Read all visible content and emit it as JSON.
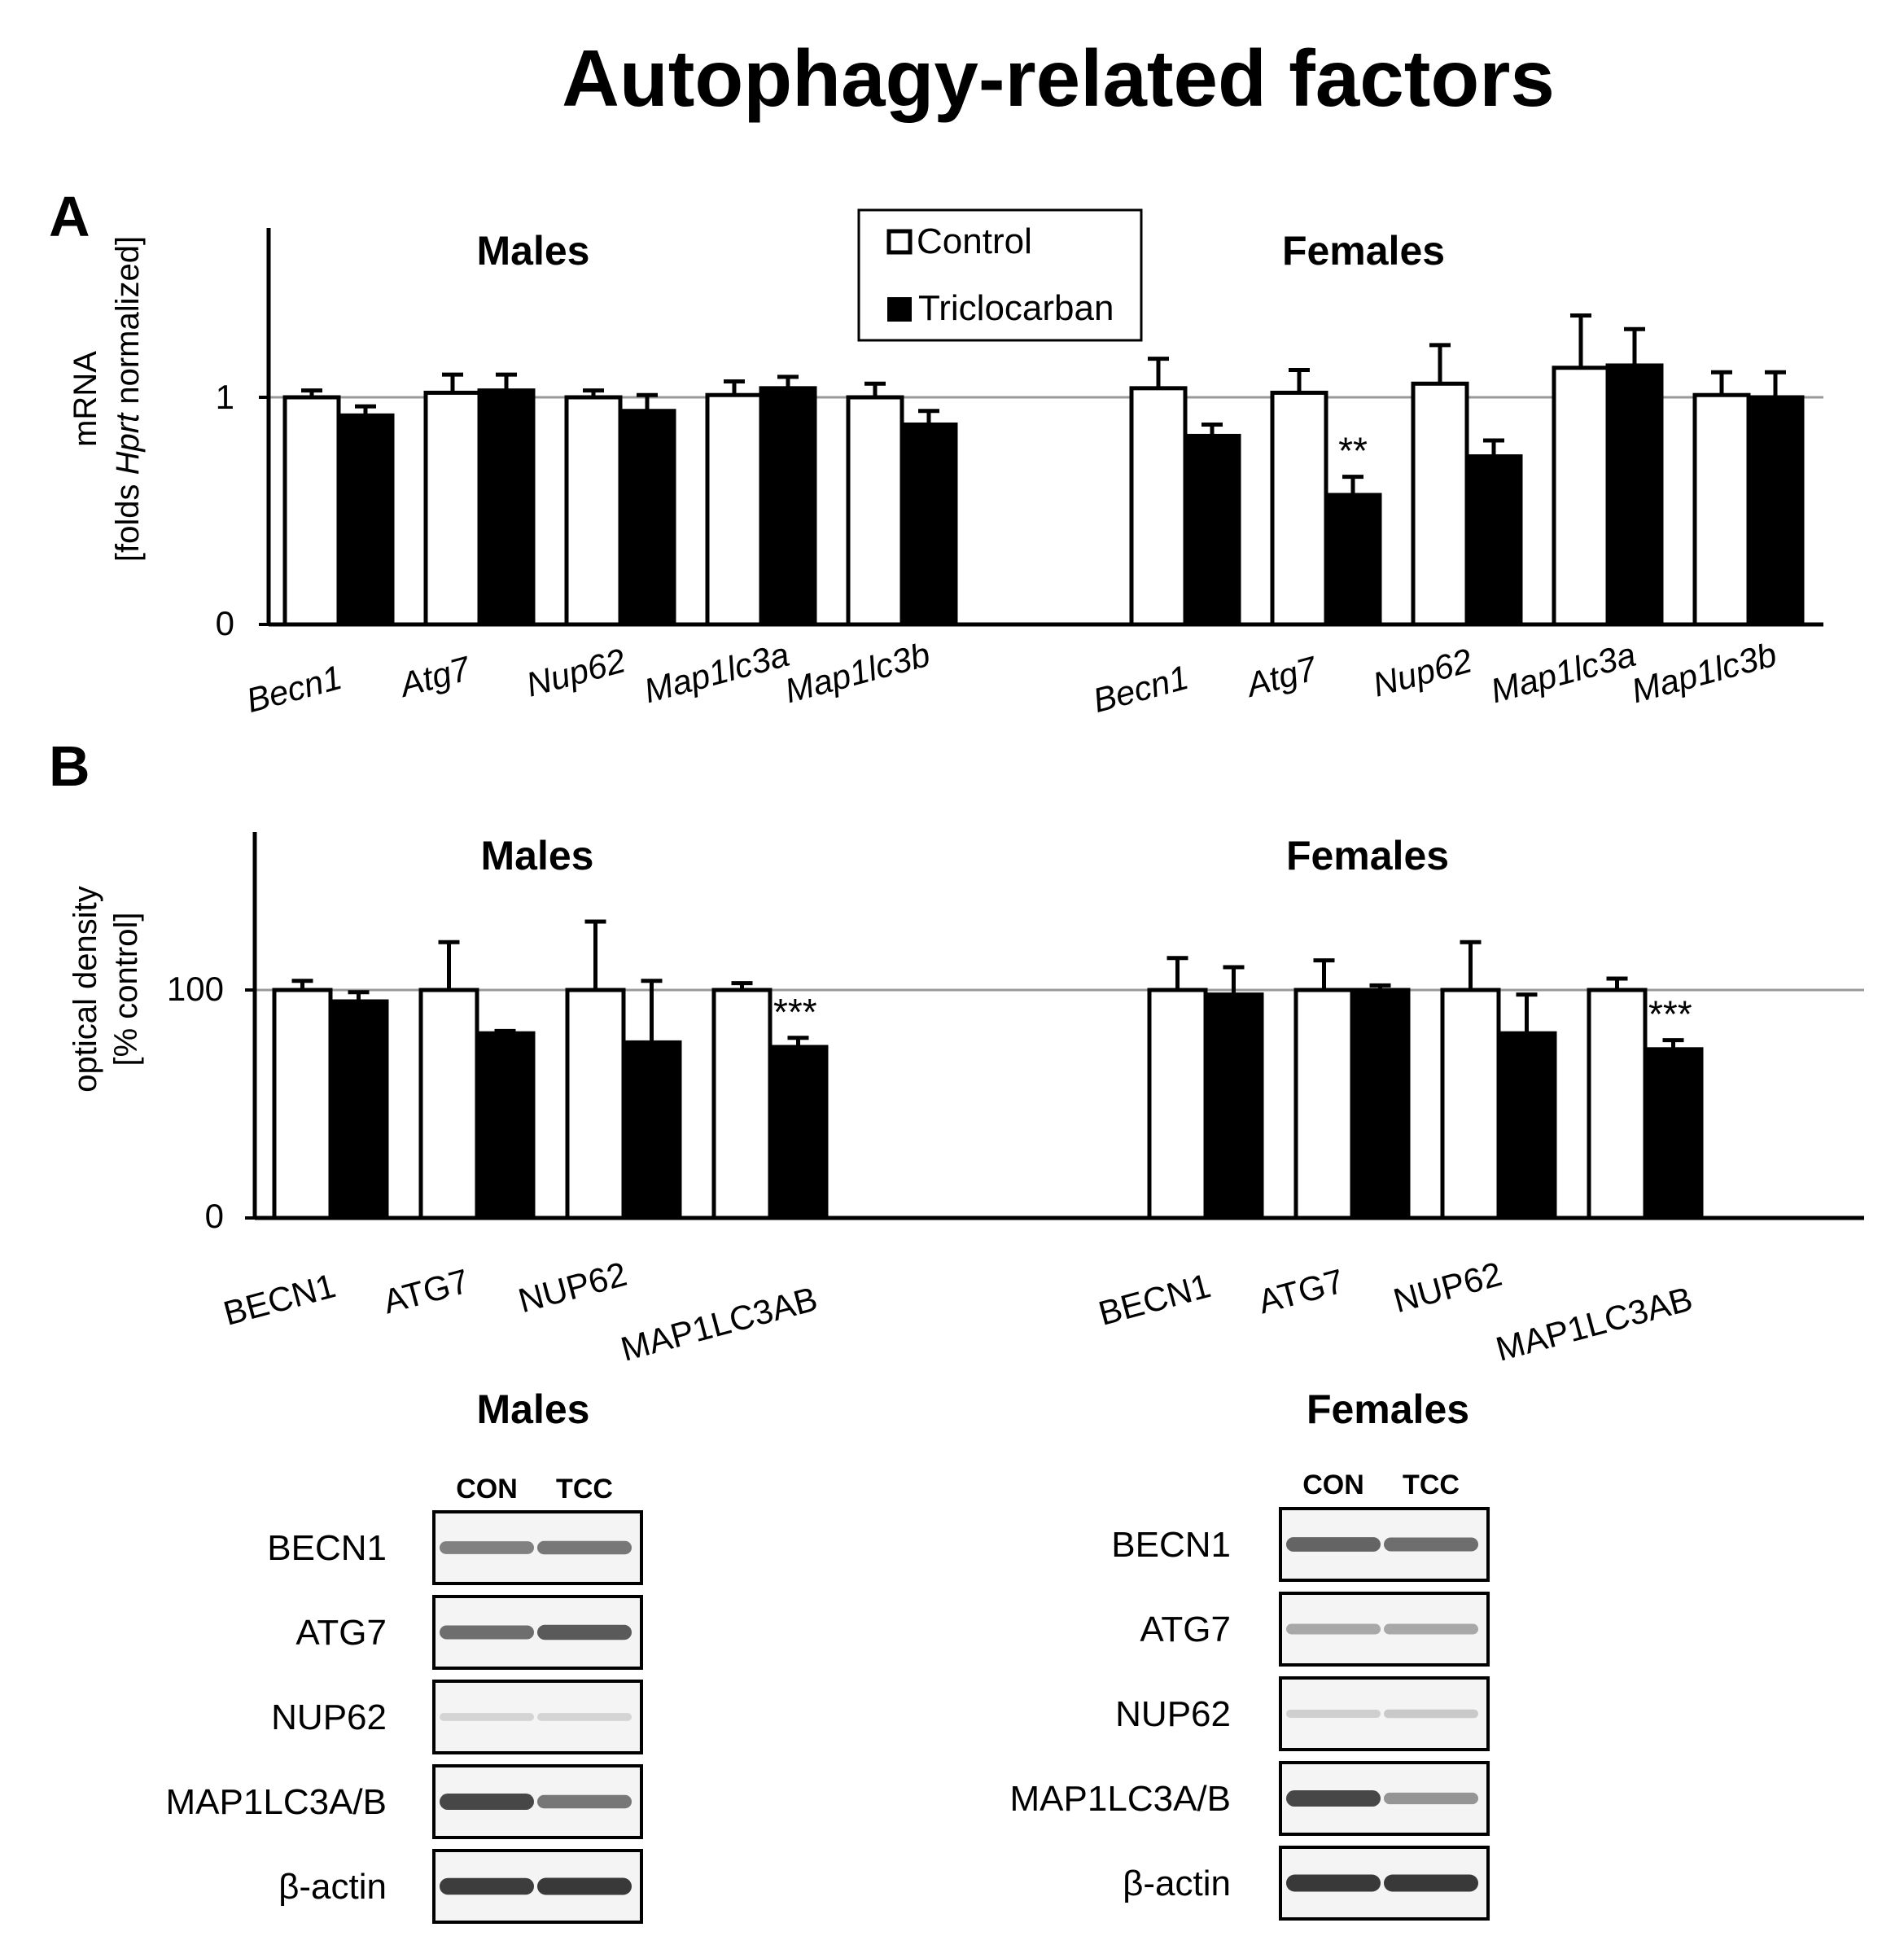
{
  "title": "Autophagy-related factors",
  "colors": {
    "control": "#ffffff",
    "treated": "#000000",
    "refline": "#999999",
    "blot_bg": "#f4f4f4"
  },
  "legend": {
    "control": "Control",
    "treated": "Triclocarban"
  },
  "panel_a": {
    "letter": "A",
    "ylabel_line1": "mRNA",
    "ylabel_line2_pre": "[folds ",
    "ylabel_line2_italic": "Hprt",
    "ylabel_line2_post": " normalized]",
    "ytick_top": "1",
    "ytick_bottom": "0",
    "group_left": "Males",
    "group_right": "Females"
  },
  "panel_b": {
    "letter": "B",
    "ylabel_line1": "optical density",
    "ylabel_line2": "[% control]",
    "ytick_top": "100",
    "ytick_bottom": "0",
    "group_left": "Males",
    "group_right": "Females"
  },
  "chart_data": [
    {
      "type": "bar",
      "panel": "A",
      "ylabel": "mRNA [folds Hprt normalized]",
      "yticks": [
        0,
        1
      ],
      "reference_line": 1,
      "series": [
        {
          "name": "Control",
          "color": "#ffffff"
        },
        {
          "name": "Triclocarban",
          "color": "#000000"
        }
      ],
      "groups": [
        {
          "name": "Males",
          "categories": [
            "Becn1",
            "Atg7",
            "Nup62",
            "Map1lc3a",
            "Map1lc3b"
          ],
          "control": {
            "values": [
              1.0,
              1.02,
              1.0,
              1.01,
              1.0
            ],
            "errors": [
              0.03,
              0.08,
              0.03,
              0.06,
              0.06
            ]
          },
          "triclocarban": {
            "values": [
              0.92,
              1.03,
              0.94,
              1.04,
              0.88
            ],
            "errors": [
              0.04,
              0.07,
              0.07,
              0.05,
              0.06
            ]
          },
          "significance": [
            "",
            "",
            "",
            "",
            ""
          ]
        },
        {
          "name": "Females",
          "categories": [
            "Becn1",
            "Atg7",
            "Nup62",
            "Map1lc3a",
            "Map1lc3b"
          ],
          "control": {
            "values": [
              1.04,
              1.02,
              1.06,
              1.13,
              1.01
            ],
            "errors": [
              0.13,
              0.1,
              0.17,
              0.23,
              0.1
            ]
          },
          "triclocarban": {
            "values": [
              0.83,
              0.57,
              0.74,
              1.14,
              1.0
            ],
            "errors": [
              0.05,
              0.08,
              0.07,
              0.16,
              0.11
            ]
          },
          "significance": [
            "",
            "**",
            "",
            "",
            ""
          ]
        }
      ]
    },
    {
      "type": "bar",
      "panel": "B",
      "ylabel": "optical density [% control]",
      "yticks": [
        0,
        100
      ],
      "reference_line": 100,
      "series": [
        {
          "name": "Control",
          "color": "#ffffff"
        },
        {
          "name": "Triclocarban",
          "color": "#000000"
        }
      ],
      "groups": [
        {
          "name": "Males",
          "categories": [
            "BECN1",
            "ATG7",
            "NUP62",
            "MAP1LC3AB"
          ],
          "control": {
            "values": [
              100,
              100,
              100,
              100
            ],
            "errors": [
              4,
              21,
              30,
              3
            ]
          },
          "triclocarban": {
            "values": [
              95,
              81,
              77,
              75
            ],
            "errors": [
              4,
              1,
              27,
              4
            ]
          },
          "significance": [
            "",
            "",
            "",
            "***"
          ]
        },
        {
          "name": "Females",
          "categories": [
            "BECN1",
            "ATG7",
            "NUP62",
            "MAP1LC3AB"
          ],
          "control": {
            "values": [
              100,
              100,
              100,
              100
            ],
            "errors": [
              14,
              13,
              21,
              5
            ]
          },
          "triclocarban": {
            "values": [
              98,
              100,
              81,
              74
            ],
            "errors": [
              12,
              2,
              17,
              4
            ]
          },
          "significance": [
            "",
            "",
            "",
            "***"
          ]
        }
      ]
    }
  ],
  "blots": {
    "males": {
      "title": "Males",
      "lanes": [
        "CON",
        "TCC"
      ],
      "rows": [
        {
          "label": "BECN1",
          "intensity": [
            0.55,
            0.6
          ]
        },
        {
          "label": "ATG7",
          "intensity": [
            0.65,
            0.75
          ]
        },
        {
          "label": "NUP62",
          "intensity": [
            0.12,
            0.12
          ]
        },
        {
          "label": "MAP1LC3A/B",
          "intensity": [
            0.85,
            0.6
          ]
        },
        {
          "label": "β-actin",
          "intensity": [
            0.9,
            0.92
          ]
        }
      ]
    },
    "females": {
      "title": "Females",
      "lanes": [
        "CON",
        "TCC"
      ],
      "rows": [
        {
          "label": "BECN1",
          "intensity": [
            0.7,
            0.65
          ]
        },
        {
          "label": "ATG7",
          "intensity": [
            0.35,
            0.35
          ]
        },
        {
          "label": "NUP62",
          "intensity": [
            0.15,
            0.18
          ]
        },
        {
          "label": "MAP1LC3A/B",
          "intensity": [
            0.85,
            0.45
          ]
        },
        {
          "label": "β-actin",
          "intensity": [
            0.92,
            0.92
          ]
        }
      ]
    }
  }
}
